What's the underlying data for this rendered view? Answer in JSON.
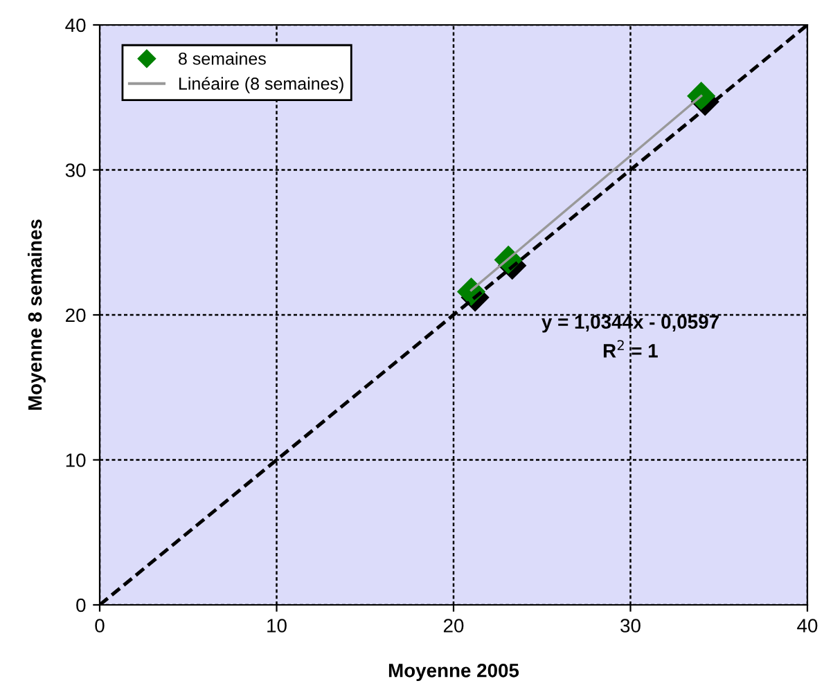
{
  "chart_data": {
    "type": "scatter",
    "xlabel": "Moyenne 2005",
    "ylabel": "Moyenne 8 semaines",
    "xlim": [
      0,
      40
    ],
    "ylim": [
      0,
      40
    ],
    "xticks": [
      0,
      10,
      20,
      30,
      40
    ],
    "yticks": [
      0,
      10,
      20,
      30,
      40
    ],
    "grid": true,
    "legend": "top left",
    "series": [
      {
        "name": "8 semaines",
        "marker": "diamond",
        "color": "#008000",
        "x": [
          21.0,
          23.1,
          34.0
        ],
        "values": [
          21.6,
          23.8,
          35.1
        ]
      },
      {
        "name": "Linéaire (8 semaines)",
        "type": "line",
        "color": "#999999",
        "x": [
          21.0,
          34.0
        ],
        "values": [
          21.7,
          35.1
        ]
      },
      {
        "type": "line",
        "color": "#000000",
        "line_style": "dashed",
        "x": [
          0,
          40
        ],
        "values": [
          0,
          40
        ]
      }
    ],
    "annotations": [
      "y = 1,0344x - 0,0597",
      "R$^{2}$ = 1"
    ]
  }
}
